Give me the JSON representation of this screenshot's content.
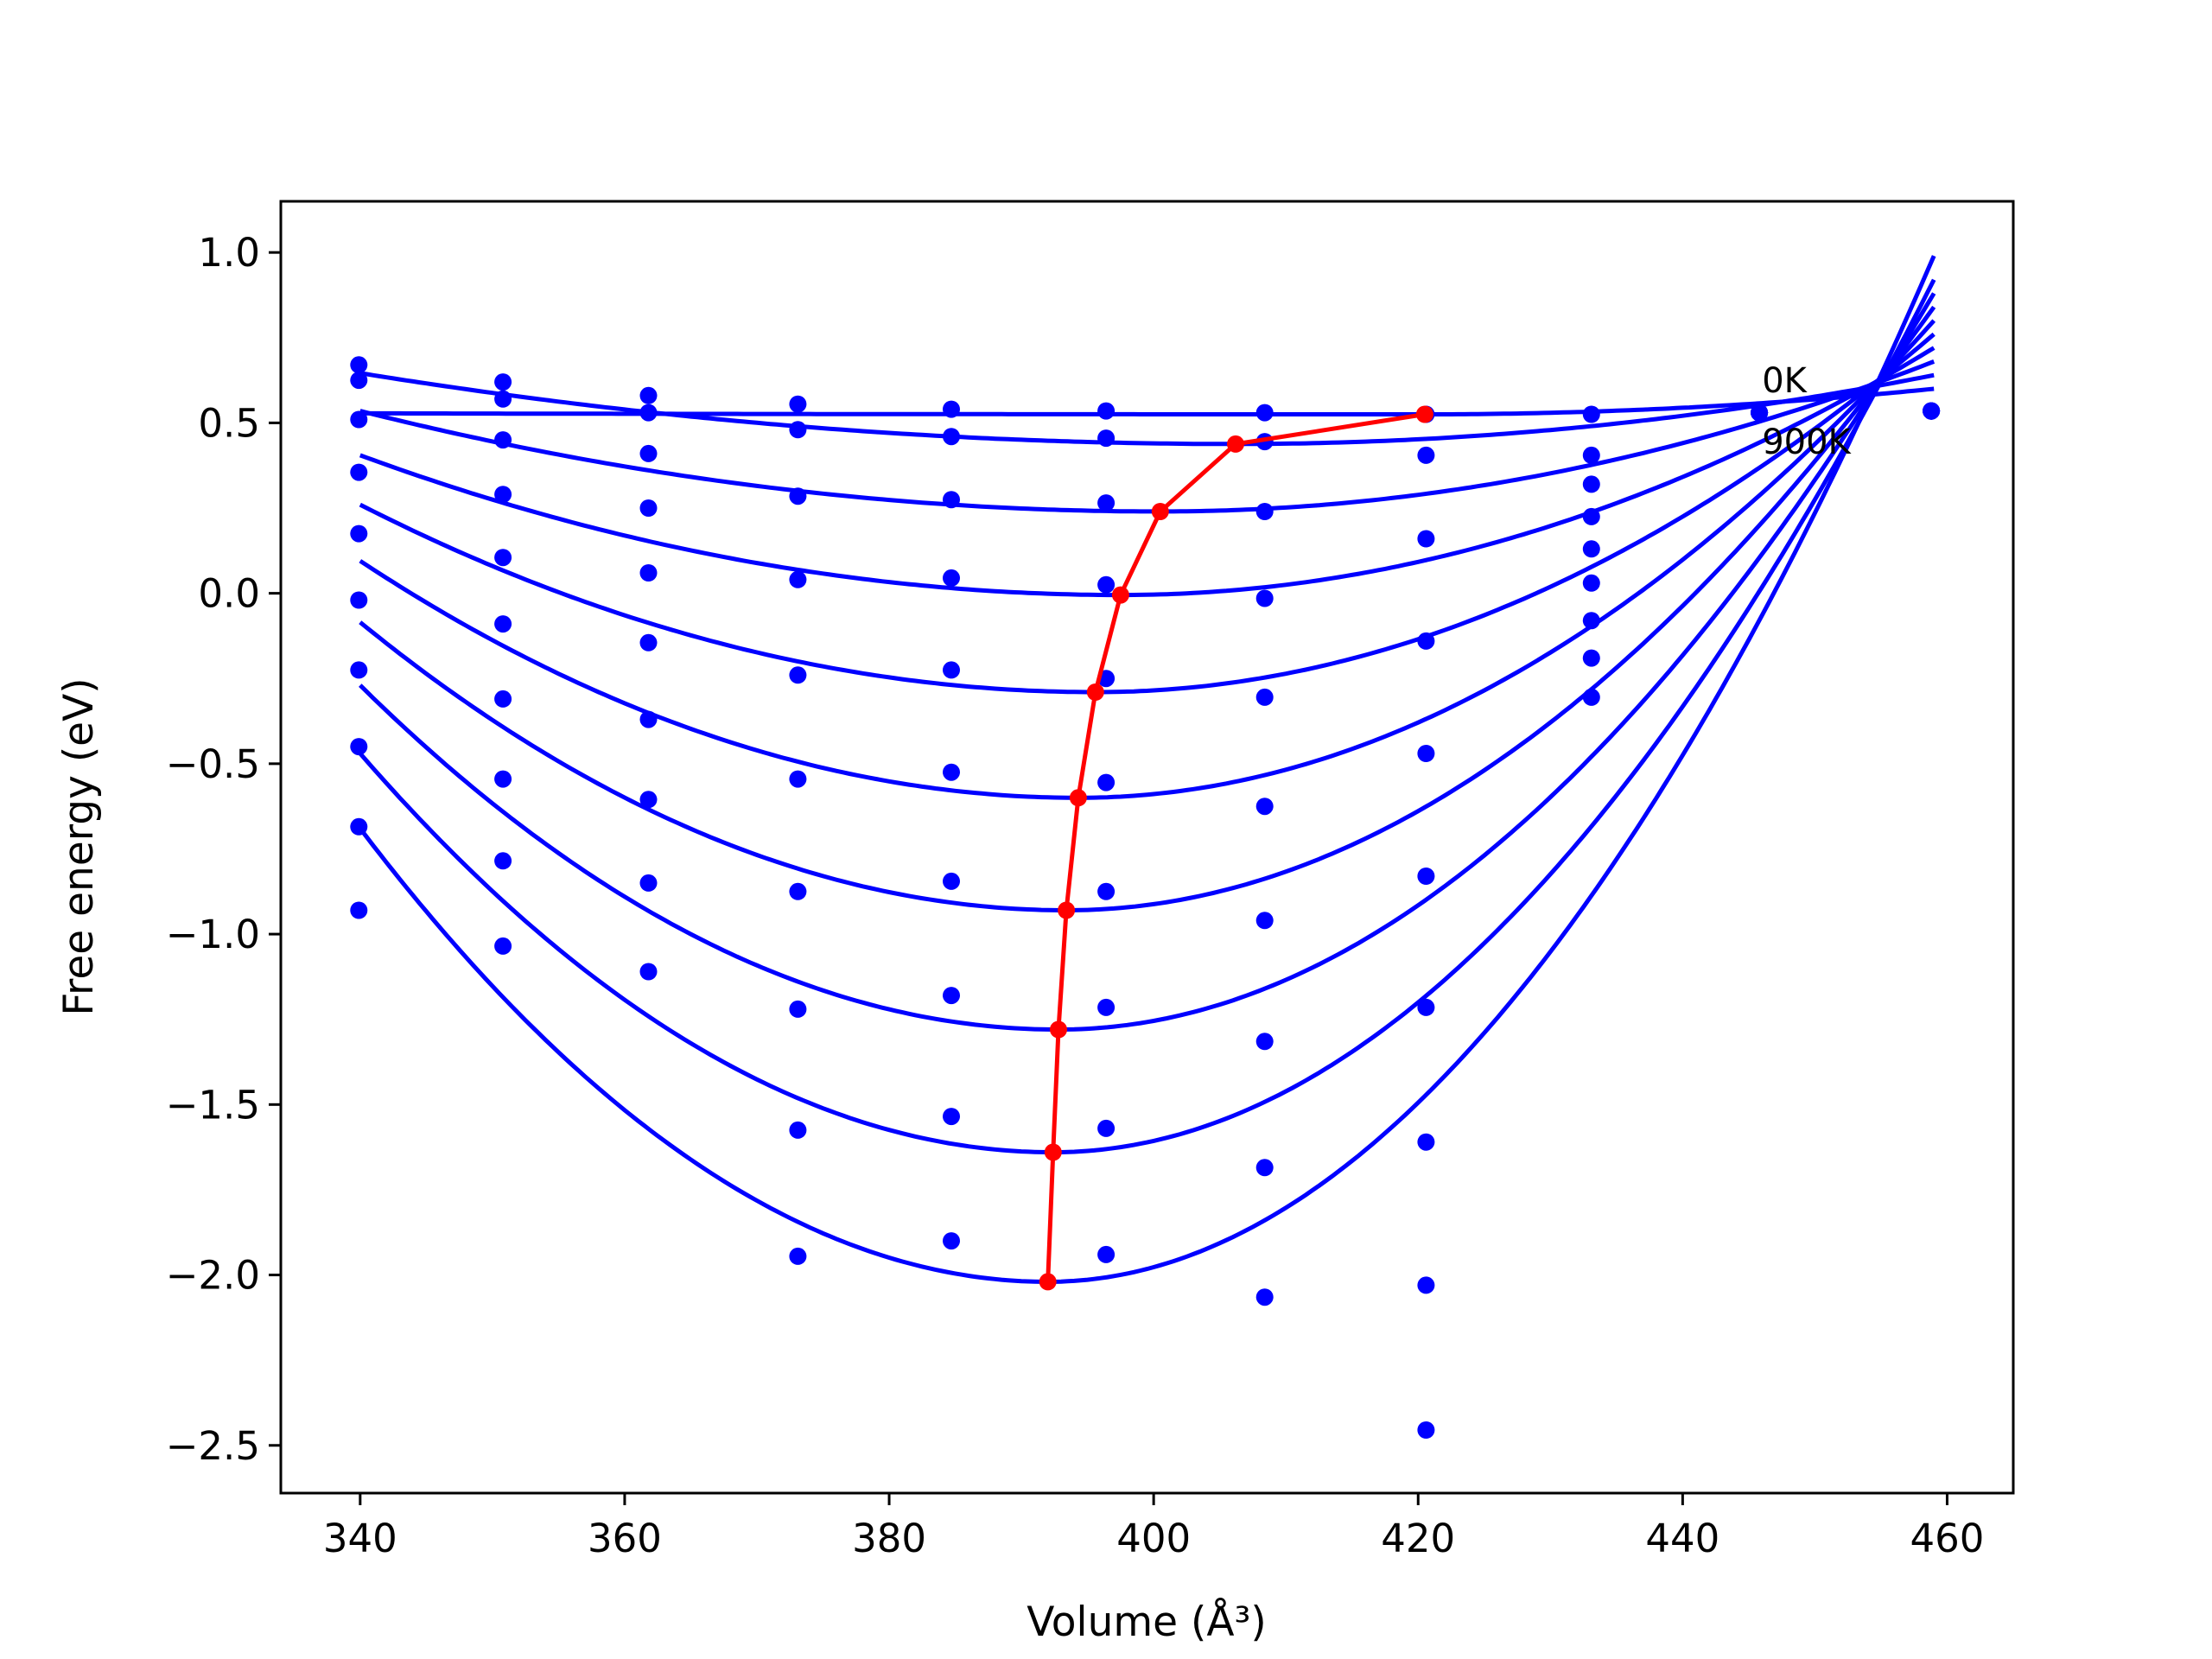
{
  "chart_data": {
    "type": "line",
    "title": "",
    "xlabel": "Volume (Å³)",
    "ylabel": "Free energy (eV)",
    "xlim": [
      334,
      465
    ],
    "ylim": [
      -2.64,
      1.15
    ],
    "x_ticks": [
      340,
      360,
      380,
      400,
      420,
      440,
      460
    ],
    "y_ticks": [
      1.0,
      0.5,
      0.0,
      -0.5,
      -1.0,
      -1.5,
      -2.0,
      -2.5
    ],
    "x_tick_labels": [
      "340",
      "360",
      "380",
      "400",
      "420",
      "440",
      "460"
    ],
    "y_tick_labels": [
      "1.0",
      "0.5",
      "0.0",
      "−0.5",
      "−1.0",
      "−1.5",
      "−2.0",
      "−2.5"
    ],
    "grid": false,
    "legend": "none",
    "annotations": [
      {
        "text": "0K",
        "x": 446,
        "y": 0.59
      },
      {
        "text": "900K",
        "x": 446,
        "y": 0.41
      }
    ],
    "curve_x_range": [
      340,
      459
    ],
    "fit_curves": [
      {
        "v0": 420.5,
        "e0": 0.525,
        "ea": 0.528,
        "eb": 0.6
      },
      {
        "v0": 406.2,
        "e0": 0.438,
        "ea": 0.646,
        "eb": 0.64
      },
      {
        "v0": 400.5,
        "e0": 0.24,
        "ea": 0.535,
        "eb": 0.68
      },
      {
        "v0": 397.5,
        "e0": -0.005,
        "ea": 0.405,
        "eb": 0.72
      },
      {
        "v0": 395.6,
        "e0": -0.29,
        "ea": 0.26,
        "eb": 0.76
      },
      {
        "v0": 394.3,
        "e0": -0.6,
        "ea": 0.095,
        "eb": 0.8
      },
      {
        "v0": 393.4,
        "e0": -0.93,
        "ea": -0.085,
        "eb": 0.84
      },
      {
        "v0": 392.8,
        "e0": -1.28,
        "ea": -0.27,
        "eb": 0.88
      },
      {
        "v0": 392.4,
        "e0": -1.64,
        "ea": -0.47,
        "eb": 0.92
      },
      {
        "v0": 392.0,
        "e0": -2.02,
        "ea": -0.69,
        "eb": 0.99
      }
    ],
    "scatter_volumes": [
      339.9,
      350.8,
      361.8,
      373.1,
      384.7,
      396.4,
      408.4,
      420.6,
      433.1,
      445.8,
      458.8
    ],
    "scatter_series": [
      [
        0.67,
        0.62,
        0.58,
        0.555,
        0.54,
        0.535,
        0.53,
        0.525,
        0.525,
        0.53,
        0.535
      ],
      [
        0.625,
        0.57,
        0.53,
        0.48,
        0.46,
        0.455,
        0.445,
        0.405,
        0.405,
        0.53,
        0.535
      ],
      [
        0.51,
        0.45,
        0.41,
        0.285,
        0.275,
        0.265,
        0.24,
        0.16,
        0.32,
        0.53,
        0.535
      ],
      [
        0.355,
        0.29,
        0.25,
        0.04,
        0.045,
        0.025,
        -0.015,
        -0.14,
        0.225,
        0.53,
        0.535
      ],
      [
        0.175,
        0.105,
        0.06,
        -0.24,
        -0.225,
        -0.25,
        -0.305,
        -0.47,
        0.13,
        0.53,
        0.535
      ],
      [
        -0.02,
        -0.09,
        -0.145,
        -0.545,
        -0.525,
        -0.555,
        -0.625,
        -0.83,
        0.03,
        0.53,
        0.535
      ],
      [
        -0.225,
        -0.31,
        -0.37,
        -0.875,
        -0.845,
        -0.875,
        -0.96,
        -1.215,
        -0.08,
        0.53,
        0.535
      ],
      [
        -0.45,
        -0.545,
        -0.605,
        -1.22,
        -1.18,
        -1.215,
        -1.315,
        -1.61,
        -0.19,
        0.53,
        0.535
      ],
      [
        -0.685,
        -0.785,
        -0.85,
        -1.575,
        -1.535,
        -1.57,
        -1.685,
        -2.03,
        -0.305,
        0.53,
        0.535
      ],
      [
        -0.93,
        -1.035,
        -1.11,
        -1.945,
        -1.9,
        -1.94,
        -2.065,
        -2.455,
        null,
        null,
        0.535
      ]
    ],
    "minimum_curve": {
      "x": [
        420.5,
        406.2,
        400.5,
        397.5,
        395.6,
        394.3,
        393.4,
        392.8,
        392.4,
        392.0
      ],
      "y": [
        0.525,
        0.438,
        0.24,
        -0.005,
        -0.29,
        -0.6,
        -0.93,
        -1.28,
        -1.64,
        -2.02
      ]
    },
    "colors": {
      "fit": "#0000ff",
      "points": "#0000ff",
      "minimum": "#ff0000",
      "axes": "#000000"
    }
  }
}
